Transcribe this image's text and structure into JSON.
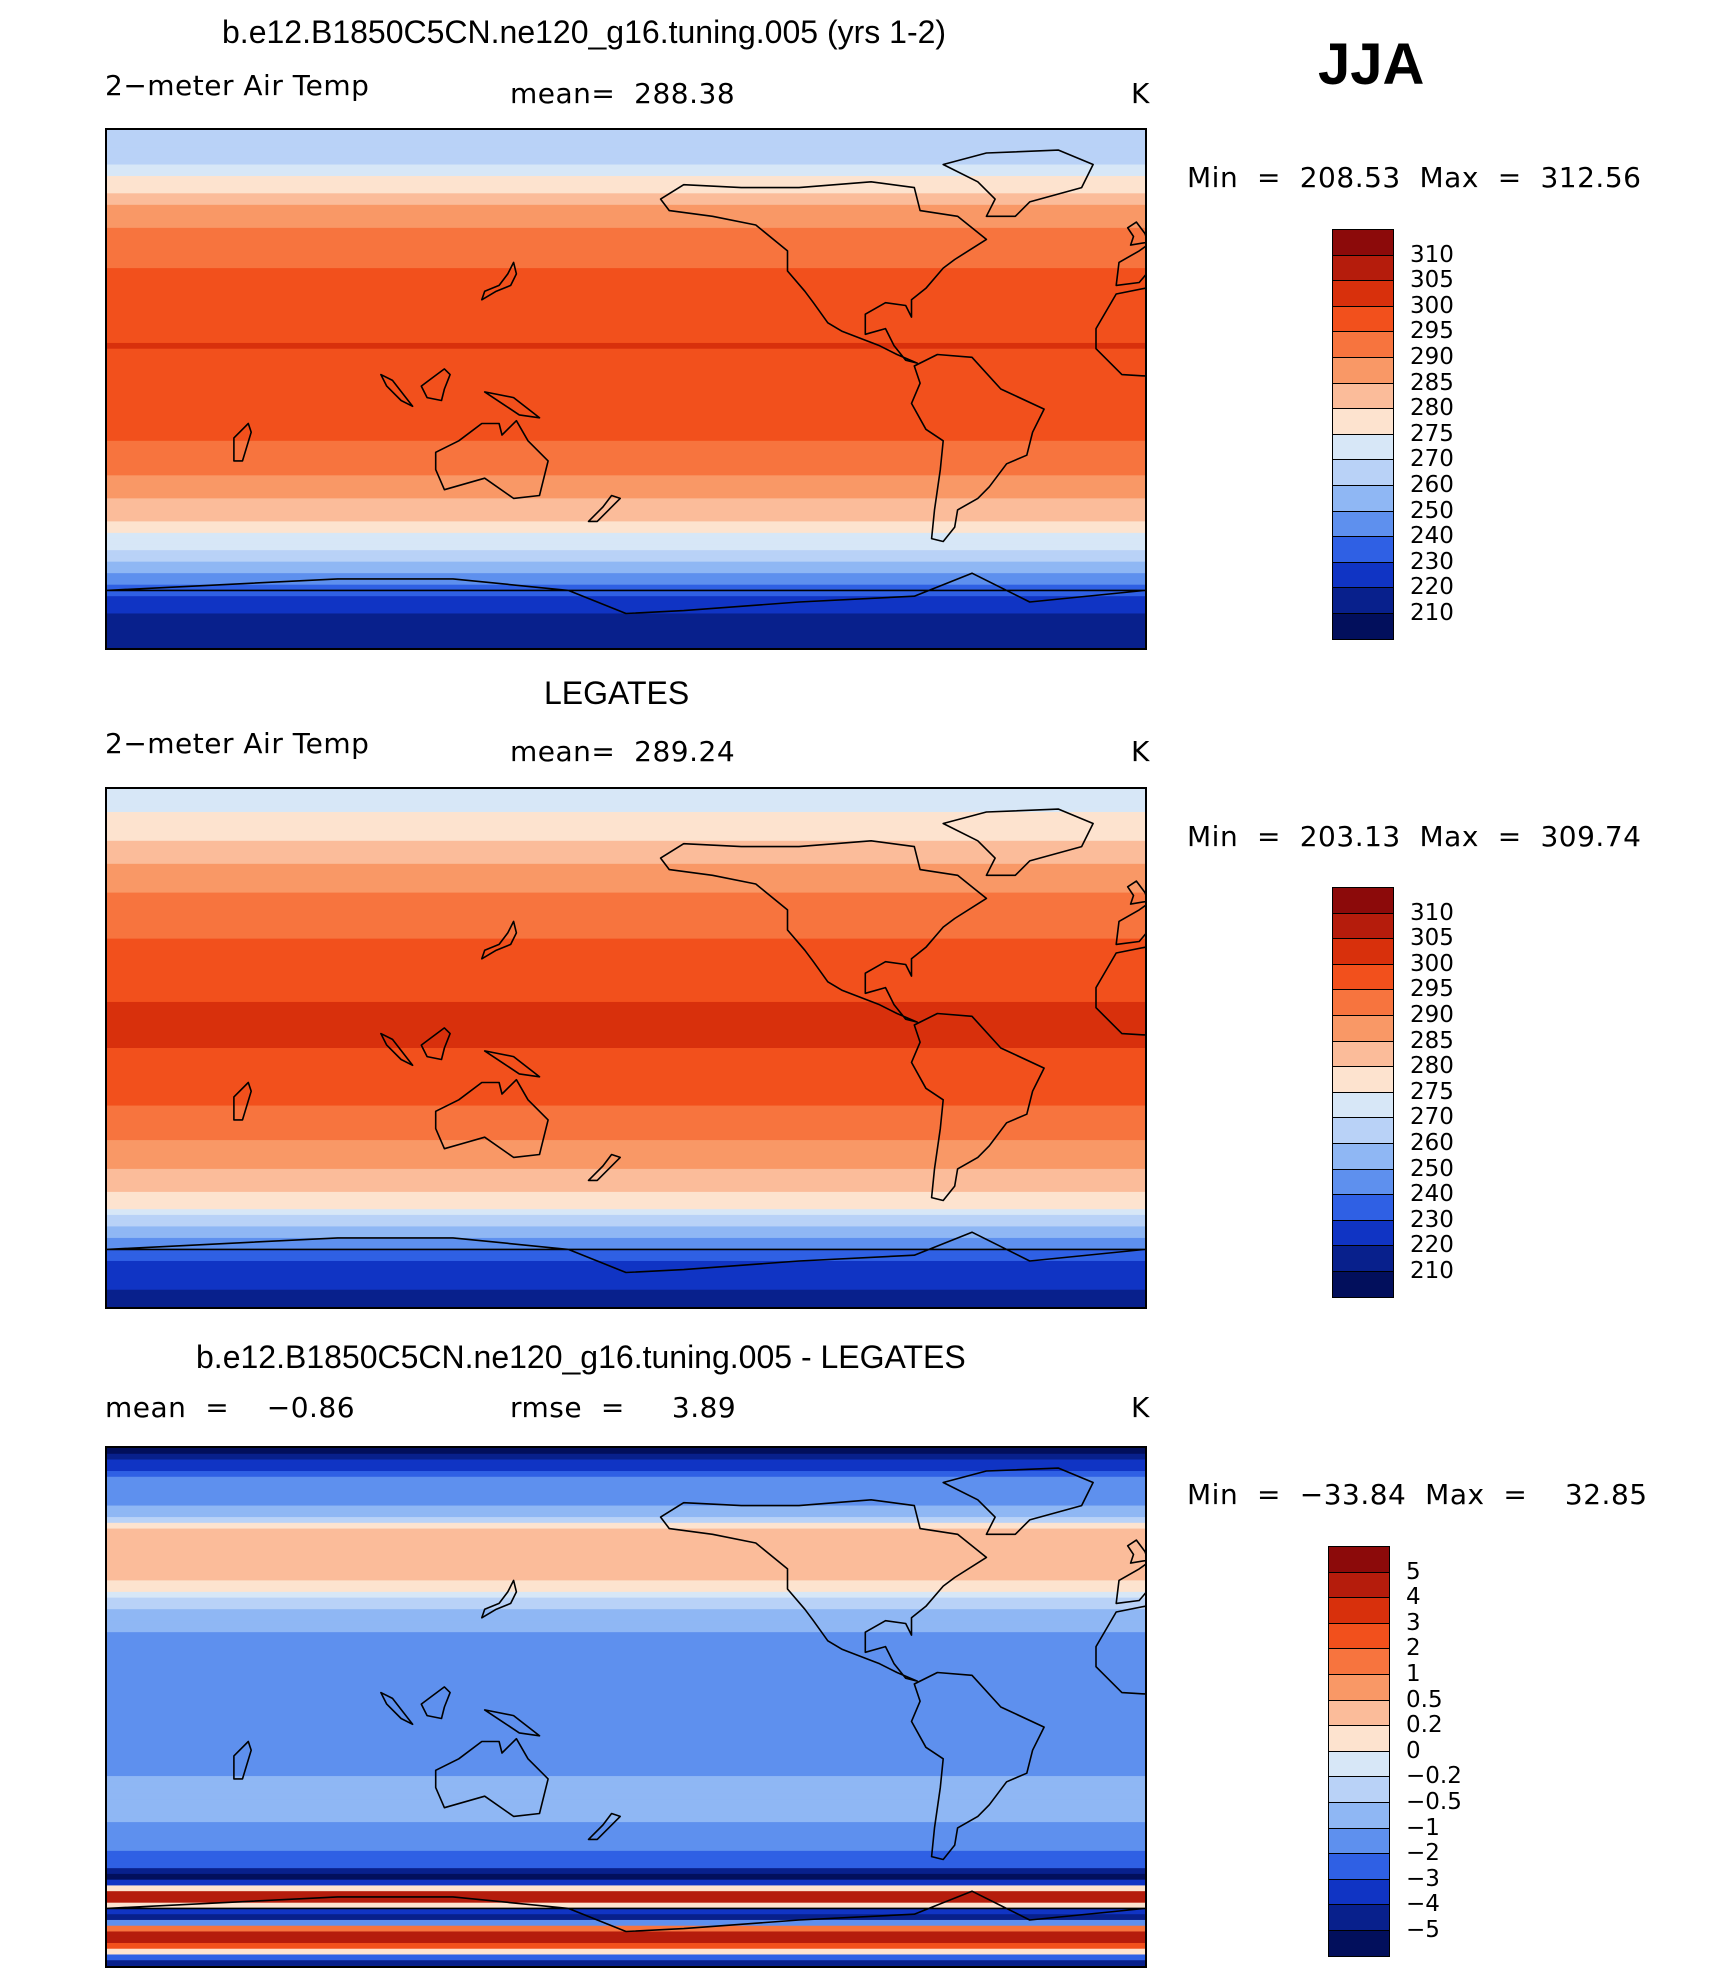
{
  "header": {
    "season": "JJA"
  },
  "panels": [
    {
      "title": "b.e12.B1850C5CN.ne120_g16.tuning.005 (yrs 1-2)",
      "left_label": "2−meter Air Temp",
      "center_label": "mean=  288.38",
      "units": "K",
      "minmax": "Min  =  208.53  Max  =  312.56"
    },
    {
      "title": "LEGATES",
      "left_label": "2−meter Air Temp",
      "center_label": "mean=  289.24",
      "units": "K",
      "minmax": "Min  =  203.13  Max  =  309.74"
    },
    {
      "title": "b.e12.B1850C5CN.ne120_g16.tuning.005 - LEGATES",
      "left_label": "mean  =    −0.86",
      "center_label": "rmse  =     3.89",
      "units": "K",
      "minmax": "Min  =  −33.84  Max  =    32.85"
    }
  ],
  "chart_data": [
    {
      "type": "heatmap",
      "title": "b.e12.B1850C5CN.ne120_g16.tuning.005 (yrs 1-2)",
      "variable": "2-meter Air Temp",
      "units": "K",
      "mean": 288.38,
      "min": 208.53,
      "max": 312.56,
      "colorbar_levels": [
        "310",
        "305",
        "300",
        "295",
        "290",
        "285",
        "280",
        "275",
        "270",
        "260",
        "250",
        "240",
        "230",
        "220",
        "210"
      ],
      "colorbar_colors": [
        "#8c0a0a",
        "#b51c0c",
        "#d8300c",
        "#f2501c",
        "#f7743e",
        "#f99866",
        "#fbbc9a",
        "#fde3cf",
        "#d7e7f7",
        "#b9d2f7",
        "#8fb7f4",
        "#5e90ee",
        "#2f60e4",
        "#1034c4",
        "#08208c",
        "#020f5c"
      ],
      "lat_profile": [
        [
          90,
          262
        ],
        [
          80,
          268
        ],
        [
          70,
          278
        ],
        [
          60,
          288
        ],
        [
          45,
          294
        ],
        [
          30,
          298
        ],
        [
          15,
          300
        ],
        [
          0,
          299
        ],
        [
          -15,
          296
        ],
        [
          -30,
          290
        ],
        [
          -45,
          281
        ],
        [
          -55,
          270
        ],
        [
          -62,
          258
        ],
        [
          -68,
          240
        ],
        [
          -75,
          222
        ],
        [
          -90,
          212
        ]
      ]
    },
    {
      "type": "heatmap",
      "title": "LEGATES",
      "variable": "2-meter Air Temp",
      "units": "K",
      "mean": 289.24,
      "min": 203.13,
      "max": 309.74,
      "colorbar_levels": [
        "310",
        "305",
        "300",
        "295",
        "290",
        "285",
        "280",
        "275",
        "270",
        "260",
        "250",
        "240",
        "230",
        "220",
        "210"
      ],
      "colorbar_colors": [
        "#8c0a0a",
        "#b51c0c",
        "#d8300c",
        "#f2501c",
        "#f7743e",
        "#f99866",
        "#fbbc9a",
        "#fde3cf",
        "#d7e7f7",
        "#b9d2f7",
        "#8fb7f4",
        "#5e90ee",
        "#2f60e4",
        "#1034c4",
        "#08208c",
        "#020f5c"
      ],
      "lat_profile": [
        [
          90,
          272
        ],
        [
          80,
          276
        ],
        [
          70,
          281
        ],
        [
          60,
          288
        ],
        [
          45,
          293
        ],
        [
          30,
          297
        ],
        [
          15,
          300
        ],
        [
          0,
          300
        ],
        [
          -15,
          297
        ],
        [
          -30,
          291
        ],
        [
          -45,
          283
        ],
        [
          -55,
          276
        ],
        [
          -62,
          262
        ],
        [
          -68,
          245
        ],
        [
          -75,
          228
        ],
        [
          -90,
          215
        ]
      ]
    },
    {
      "type": "heatmap",
      "title": "b.e12.B1850C5CN.ne120_g16.tuning.005 - LEGATES",
      "units": "K",
      "mean": -0.86,
      "rmse": 3.89,
      "min": -33.84,
      "max": 32.85,
      "colorbar_levels": [
        "5",
        "4",
        "3",
        "2",
        "1",
        "0.5",
        "0.2",
        "0",
        "−0.2",
        "−0.5",
        "−1",
        "−2",
        "−3",
        "−4",
        "−5"
      ],
      "colorbar_colors": [
        "#8c0a0a",
        "#b51c0c",
        "#d8300c",
        "#f2501c",
        "#f7743e",
        "#f99866",
        "#fbbc9a",
        "#fde3cf",
        "#d7e7f7",
        "#b9d2f7",
        "#8fb7f4",
        "#5e90ee",
        "#2f60e4",
        "#1034c4",
        "#08208c",
        "#020f5c"
      ],
      "lat_profile": [
        [
          90,
          -6
        ],
        [
          80,
          -2
        ],
        [
          70,
          -1
        ],
        [
          60,
          0.5
        ],
        [
          45,
          0.3
        ],
        [
          30,
          -0.8
        ],
        [
          15,
          -1.5
        ],
        [
          0,
          -1.2
        ],
        [
          -15,
          -1.5
        ],
        [
          -30,
          -0.7
        ],
        [
          -45,
          -1.2
        ],
        [
          -55,
          -3
        ],
        [
          -60,
          -6
        ],
        [
          -66,
          6
        ],
        [
          -72,
          -6
        ],
        [
          -80,
          6
        ],
        [
          -90,
          -6
        ]
      ]
    }
  ]
}
